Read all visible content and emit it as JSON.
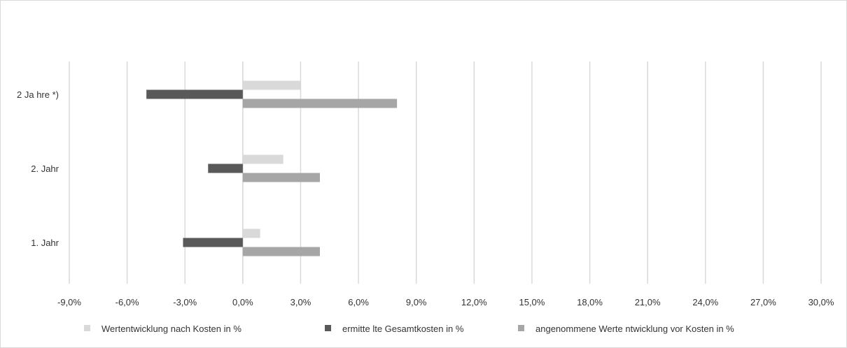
{
  "chart_data": {
    "type": "bar",
    "orientation": "horizontal",
    "title": "",
    "xlabel": "",
    "ylabel": "",
    "xlim": [
      -9.0,
      30.0
    ],
    "x_ticks": [
      "-9,0%",
      "-6,0%",
      "-3,0%",
      "0,0%",
      "3,0%",
      "6,0%",
      "9,0%",
      "12,0%",
      "15,0%",
      "18,0%",
      "21,0%",
      "24,0%",
      "27,0%",
      "30,0%"
    ],
    "grid": "vertical",
    "legend_position": "bottom",
    "categories": [
      "2 Ja hre *)",
      "2. Jahr",
      "1. Jahr"
    ],
    "series": [
      {
        "name": "Wertentwicklung nach Kosten in %",
        "color": "#d9d9d9",
        "values": [
          3.0,
          2.1,
          0.9
        ]
      },
      {
        "name": "ermitte lte Gesamtkosten in %",
        "color": "#595959",
        "values": [
          -5.0,
          -1.8,
          -3.1
        ]
      },
      {
        "name": "angenommene Werte ntwicklung vor Kosten in %",
        "color": "#a6a6a6",
        "values": [
          8.0,
          4.0,
          4.0
        ]
      }
    ]
  }
}
